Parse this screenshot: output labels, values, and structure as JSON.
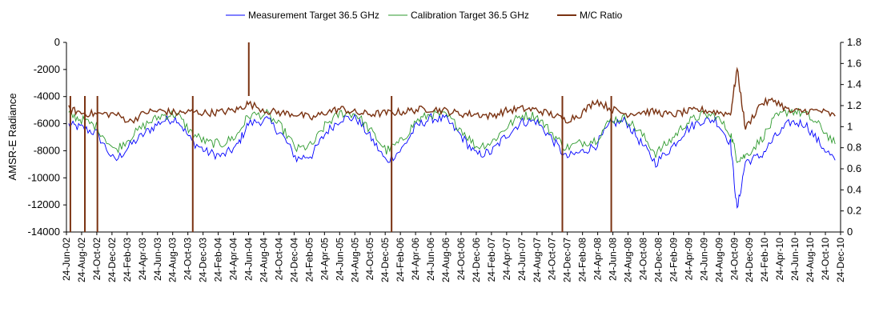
{
  "chart_data": {
    "type": "line",
    "title": "",
    "legend_position": "top-center",
    "grid": false,
    "ylabel_left": "AMSR-E Radiance",
    "ylabel_right": "",
    "xlabel": "",
    "xlim": [
      "2002-06-01",
      "2011-01-15"
    ],
    "ylim_left": [
      -14000,
      0
    ],
    "ylim_right": [
      0,
      1.8
    ],
    "yticks_left": [
      0,
      -2000,
      -4000,
      -6000,
      -8000,
      -10000,
      -12000,
      -14000
    ],
    "yticks_right": [
      "0",
      "0.2",
      "0.4",
      "0.6",
      "0.8",
      "1",
      "1.2",
      "1.4",
      "1.6",
      "1.8"
    ],
    "xtick_labels": [
      "24-Jun-02",
      "24-Aug-02",
      "24-Oct-02",
      "24-Dec-02",
      "24-Feb-03",
      "24-Apr-03",
      "24-Jun-03",
      "24-Aug-03",
      "24-Oct-03",
      "24-Dec-03",
      "24-Feb-04",
      "24-Apr-04",
      "24-Jun-04",
      "24-Aug-04",
      "24-Oct-04",
      "24-Dec-04",
      "24-Feb-05",
      "24-Apr-05",
      "24-Jun-05",
      "24-Aug-05",
      "24-Oct-05",
      "24-Dec-05",
      "24-Feb-06",
      "24-Apr-06",
      "24-Jun-06",
      "24-Aug-06",
      "24-Oct-06",
      "24-Dec-06",
      "24-Feb-07",
      "24-Apr-07",
      "24-Jun-07",
      "24-Aug-07",
      "24-Oct-07",
      "24-Dec-07",
      "24-Feb-08",
      "24-Apr-08",
      "24-Jun-08",
      "24-Aug-08",
      "24-Oct-08",
      "24-Dec-08",
      "24-Feb-09",
      "24-Apr-09",
      "24-Jun-09",
      "24-Aug-09",
      "24-Oct-09",
      "24-Dec-09",
      "24-Feb-10",
      "24-Apr-10",
      "24-Jun-10",
      "24-Aug-10",
      "24-Oct-10",
      "24-Dec-10"
    ],
    "series": [
      {
        "name": "Measurement Target 36.5 GHz",
        "axis": "left",
        "color": "#0000ff",
        "x": [
          "2002-06-10",
          "2002-08-01",
          "2002-10-01",
          "2002-12-15",
          "2003-02-15",
          "2003-04-24",
          "2003-06-24",
          "2003-08-24",
          "2003-10-24",
          "2003-12-24",
          "2004-02-24",
          "2004-04-24",
          "2004-06-10",
          "2004-08-24",
          "2004-10-24",
          "2004-12-24",
          "2005-02-24",
          "2005-04-24",
          "2005-06-24",
          "2005-08-24",
          "2005-10-24",
          "2005-12-24",
          "2006-02-24",
          "2006-04-24",
          "2006-06-24",
          "2006-08-24",
          "2006-10-24",
          "2006-12-24",
          "2007-02-24",
          "2007-04-24",
          "2007-06-24",
          "2007-08-24",
          "2007-10-24",
          "2007-12-24",
          "2008-02-24",
          "2008-04-24",
          "2008-06-24",
          "2008-08-24",
          "2008-10-24",
          "2008-12-24",
          "2009-02-24",
          "2009-04-24",
          "2009-06-24",
          "2009-08-24",
          "2009-10-24",
          "2009-11-20",
          "2009-12-24",
          "2010-02-24",
          "2010-04-24",
          "2010-06-24",
          "2010-08-24",
          "2010-10-24",
          "2010-12-24"
        ],
        "values": [
          -6100,
          -6300,
          -6700,
          -8800,
          -7600,
          -6600,
          -5800,
          -5600,
          -7300,
          -8100,
          -8400,
          -7700,
          -6000,
          -5700,
          -6800,
          -8600,
          -8300,
          -6600,
          -5600,
          -5600,
          -7100,
          -8800,
          -7900,
          -6200,
          -5600,
          -5700,
          -6900,
          -8300,
          -8100,
          -6900,
          -5900,
          -5800,
          -7000,
          -8500,
          -8100,
          -7600,
          -6000,
          -5800,
          -7400,
          -8900,
          -7800,
          -6500,
          -5800,
          -5700,
          -7400,
          -12400,
          -8800,
          -8400,
          -7000,
          -5900,
          -6000,
          -7500,
          -8700
        ]
      },
      {
        "name": "Calibration Target 36.5 GHz",
        "axis": "left",
        "color": "#2e9a2e",
        "x": [
          "2002-06-10",
          "2002-08-01",
          "2002-10-01",
          "2002-12-15",
          "2003-02-15",
          "2003-04-24",
          "2003-06-24",
          "2003-08-24",
          "2003-10-24",
          "2003-12-24",
          "2004-02-24",
          "2004-04-24",
          "2004-06-10",
          "2004-08-24",
          "2004-10-24",
          "2004-12-24",
          "2005-02-24",
          "2005-04-24",
          "2005-06-24",
          "2005-08-24",
          "2005-10-24",
          "2005-12-24",
          "2006-02-24",
          "2006-04-24",
          "2006-06-24",
          "2006-08-24",
          "2006-10-24",
          "2006-12-24",
          "2007-02-24",
          "2007-04-24",
          "2007-06-24",
          "2007-08-24",
          "2007-10-24",
          "2007-12-24",
          "2008-02-24",
          "2008-04-24",
          "2008-06-24",
          "2008-08-24",
          "2008-10-24",
          "2008-12-24",
          "2009-02-24",
          "2009-04-24",
          "2009-06-24",
          "2009-08-24",
          "2009-10-24",
          "2009-11-20",
          "2009-12-24",
          "2010-02-24",
          "2010-04-24",
          "2010-06-24",
          "2010-08-24",
          "2010-10-24",
          "2010-12-24"
        ],
        "values": [
          -5300,
          -5700,
          -6200,
          -8000,
          -7000,
          -6000,
          -5400,
          -5300,
          -6700,
          -7400,
          -7500,
          -6900,
          -5400,
          -5300,
          -6300,
          -7900,
          -7600,
          -6000,
          -5200,
          -5300,
          -6600,
          -8000,
          -7300,
          -5800,
          -5300,
          -5400,
          -6400,
          -7700,
          -7400,
          -6300,
          -5400,
          -5400,
          -6600,
          -7800,
          -7400,
          -7200,
          -5700,
          -5600,
          -6700,
          -8200,
          -7200,
          -6000,
          -5400,
          -5400,
          -6700,
          -8600,
          -8400,
          -7200,
          -5600,
          -5000,
          -5300,
          -6200,
          -7500
        ]
      },
      {
        "name": "M/C Ratio",
        "axis": "right",
        "color": "#7a3211",
        "x": [
          "2002-06-10",
          "2002-08-01",
          "2002-10-01",
          "2002-12-15",
          "2003-02-15",
          "2003-04-24",
          "2003-06-24",
          "2003-08-24",
          "2003-10-24",
          "2003-12-24",
          "2004-02-24",
          "2004-04-24",
          "2004-06-10",
          "2004-08-24",
          "2004-10-24",
          "2004-12-24",
          "2005-02-24",
          "2005-04-24",
          "2005-06-24",
          "2005-08-24",
          "2005-10-24",
          "2005-12-24",
          "2006-02-24",
          "2006-04-24",
          "2006-06-24",
          "2006-08-24",
          "2006-10-24",
          "2006-12-24",
          "2007-02-24",
          "2007-04-24",
          "2007-06-24",
          "2007-08-24",
          "2007-10-24",
          "2007-12-24",
          "2008-02-24",
          "2008-04-24",
          "2008-06-24",
          "2008-08-24",
          "2008-10-24",
          "2008-12-24",
          "2009-02-24",
          "2009-04-24",
          "2009-06-24",
          "2009-08-24",
          "2009-10-24",
          "2009-11-20",
          "2009-12-24",
          "2010-02-24",
          "2010-04-24",
          "2010-06-24",
          "2010-08-24",
          "2010-10-24",
          "2010-12-24"
        ],
        "values": [
          1.17,
          1.13,
          1.12,
          1.12,
          1.05,
          1.14,
          1.15,
          1.13,
          1.14,
          1.13,
          1.14,
          1.16,
          1.22,
          1.15,
          1.13,
          1.12,
          1.08,
          1.14,
          1.17,
          1.13,
          1.12,
          1.13,
          1.14,
          1.16,
          1.17,
          1.15,
          1.12,
          1.12,
          1.1,
          1.15,
          1.17,
          1.16,
          1.12,
          1.06,
          1.12,
          1.25,
          1.17,
          1.12,
          1.14,
          1.14,
          1.11,
          1.14,
          1.16,
          1.14,
          1.12,
          1.55,
          0.98,
          1.22,
          1.25,
          1.14,
          1.15,
          1.15,
          1.1
        ]
      },
      {
        "name": "",
        "axis": "right",
        "color": "#7a3211",
        "kind": "spikes",
        "x": [
          "2002-06-17",
          "2002-08-15",
          "2002-10-05",
          "2003-10-28",
          "2004-06-12",
          "2006-01-14",
          "2007-12-10",
          "2008-06-26"
        ],
        "values": [
          0,
          0,
          0,
          0,
          1.8,
          0,
          0,
          0
        ]
      }
    ]
  }
}
